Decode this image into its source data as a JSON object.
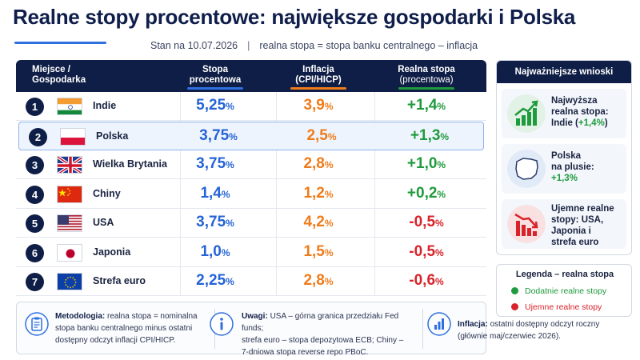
{
  "header": {
    "title": "Realne stopy procentowe: największe gospodarki i Polska",
    "date": "Stan na 10.07.2026",
    "definition": "realna stopa = stopa banku centralnego – inflacja"
  },
  "table": {
    "columns": {
      "place_line1": "Miejsce /",
      "place_line2": "Gospodarka",
      "rate_line1": "Stopa",
      "rate_line2": "procentowa",
      "inflation_line1": "Inflacja",
      "inflation_line2": "(CPI/HICP)",
      "real_line1": "Realna stopa",
      "real_line2": "(procentowa)"
    },
    "percent_sign": "%",
    "rows": [
      {
        "rank": "1",
        "country": "Indie",
        "rate": "5,25",
        "inflation": "3,9",
        "real": "+1,4",
        "sign": "pos",
        "flag": "india-flag-icon"
      },
      {
        "rank": "2",
        "country": "Polska",
        "rate": "3,75",
        "inflation": "2,5",
        "real": "+1,3",
        "sign": "pos",
        "flag": "poland-flag-icon"
      },
      {
        "rank": "3",
        "country": "Wielka Brytania",
        "rate": "3,75",
        "inflation": "2,8",
        "real": "+1,0",
        "sign": "pos",
        "flag": "uk-flag-icon"
      },
      {
        "rank": "4",
        "country": "Chiny",
        "rate": "1,4",
        "inflation": "1,2",
        "real": "+0,2",
        "sign": "pos",
        "flag": "china-flag-icon"
      },
      {
        "rank": "5",
        "country": "USA",
        "rate": "3,75",
        "inflation": "4,2",
        "real": "-0,5",
        "sign": "neg",
        "flag": "usa-flag-icon"
      },
      {
        "rank": "6",
        "country": "Japonia",
        "rate": "1,0",
        "inflation": "1,5",
        "real": "-0,5",
        "sign": "neg",
        "flag": "japan-flag-icon"
      },
      {
        "rank": "7",
        "country": "Strefa euro",
        "rate": "2,25",
        "inflation": "2,8",
        "real": "-0,6",
        "sign": "neg",
        "flag": "eu-flag-icon"
      }
    ]
  },
  "side_panel": {
    "title": "Najważniejsze wnioski",
    "card1_line1": "Najwyższa",
    "card1_line2": "realna stopa:",
    "card1_line3a": "Indie (",
    "card1_line3b": "+1,4%",
    "card1_line3c": ")",
    "card2_line1": "Polska",
    "card2_line2": "na plusie:",
    "card2_line3": "+1,3%",
    "card3_line1": "Ujemne realne",
    "card3_line2": "stopy: USA,",
    "card3_line3": "Japonia i",
    "card3_line4": "strefa euro"
  },
  "legend": {
    "title": "Legenda – realna stopa",
    "positive": "Dodatnie realne stopy",
    "negative": "Ujemne realne stopy"
  },
  "footer": {
    "method_label": "Metodologia:",
    "method_l1": "realna stopa = nominalna",
    "method_l2": "stopa banku centralnego minus ostatni",
    "method_l3": "dostępny odczyt inflacji CPI/HICP.",
    "notes_label": "Uwagi:",
    "notes_l1": "USA – górna granica przedziału Fed funds;",
    "notes_l2": "strefa euro – stopa depozytowa ECB; Chiny –",
    "notes_l3": "7-dniowa stopa reverse repo PBoC.",
    "infl_label": "Inflacja:",
    "infl_l1": "ostatni dostępny odczyt roczny",
    "infl_l2": "(głównie maj/czerwiec 2026)."
  },
  "colors": {
    "navy": "#0f1e46",
    "blue": "#2563d6",
    "orange": "#f07b1a",
    "green": "#1f9a3c",
    "red": "#d8232a"
  }
}
